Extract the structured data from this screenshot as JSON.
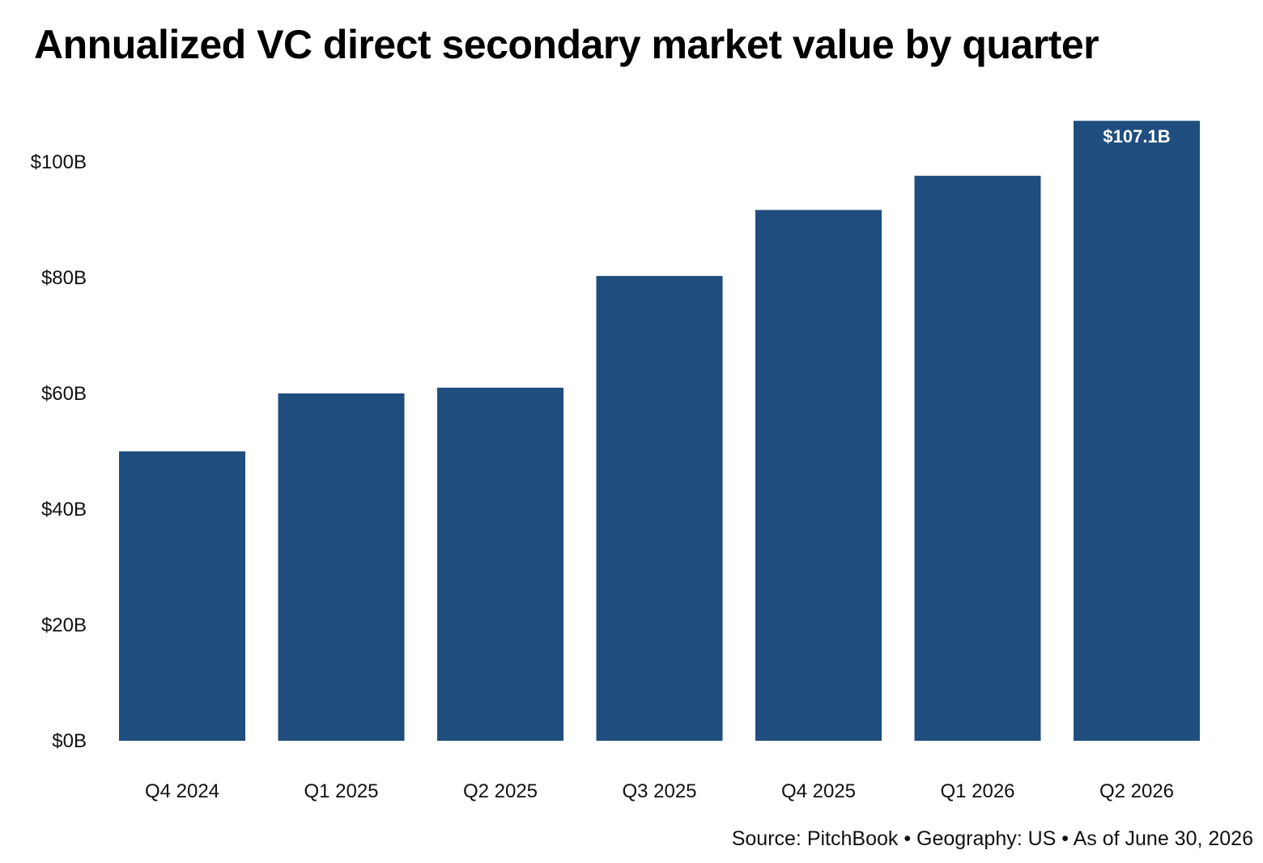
{
  "chart_data": {
    "type": "bar",
    "title": "Annualized VC direct secondary market value by quarter",
    "categories": [
      "Q4 2024",
      "Q1 2025",
      "Q2 2025",
      "Q3 2025",
      "Q4 2025",
      "Q1 2026",
      "Q2 2026"
    ],
    "values": [
      50.0,
      60.0,
      61.0,
      80.3,
      91.7,
      97.6,
      107.1
    ],
    "data_labels": [
      null,
      null,
      null,
      null,
      null,
      null,
      "$107.1B"
    ],
    "y_ticks": [
      0,
      20,
      40,
      60,
      80,
      100
    ],
    "y_tick_labels": [
      "$0B",
      "$20B",
      "$40B",
      "$60B",
      "$80B",
      "$100B"
    ],
    "ylim": [
      0,
      107.1
    ],
    "xlabel": "",
    "ylabel": "",
    "grid": false,
    "bar_color": "#1f4e7e"
  },
  "source": "Source: PitchBook • Geography: US • As of June 30, 2026"
}
